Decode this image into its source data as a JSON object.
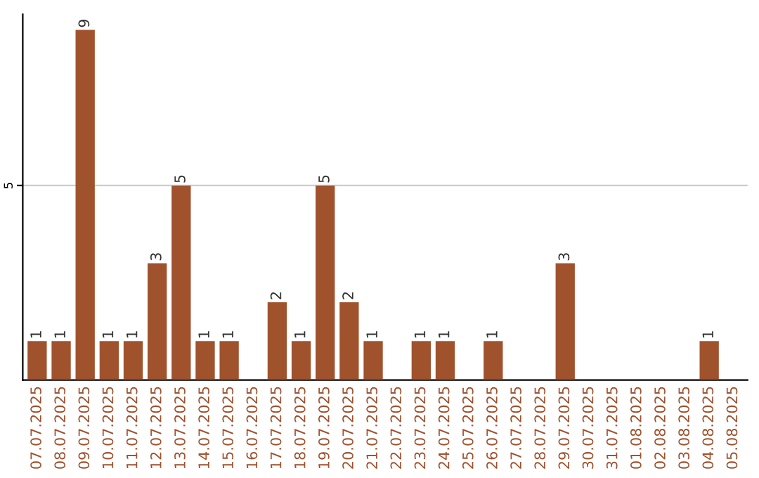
{
  "chart_data": {
    "type": "bar",
    "categories": [
      "07.07.2025",
      "08.07.2025",
      "09.07.2025",
      "10.07.2025",
      "11.07.2025",
      "12.07.2025",
      "13.07.2025",
      "14.07.2025",
      "15.07.2025",
      "16.07.2025",
      "17.07.2025",
      "18.07.2025",
      "19.07.2025",
      "20.07.2025",
      "21.07.2025",
      "22.07.2025",
      "23.07.2025",
      "24.07.2025",
      "25.07.2025",
      "26.07.2025",
      "27.07.2025",
      "28.07.2025",
      "29.07.2025",
      "30.07.2025",
      "31.07.2025",
      "01.08.2025",
      "02.08.2025",
      "03.08.2025",
      "04.08.2025",
      "05.08.2025"
    ],
    "values": [
      1,
      1,
      9,
      1,
      1,
      3,
      5,
      1,
      1,
      0,
      2,
      1,
      5,
      2,
      1,
      0,
      1,
      1,
      0,
      1,
      0,
      0,
      3,
      0,
      0,
      0,
      0,
      0,
      1,
      0
    ],
    "value_labels": [
      "1",
      "1",
      "9",
      "1",
      "1",
      "3",
      "5",
      "1",
      "1",
      null,
      "2",
      "1",
      "5",
      "2",
      "1",
      null,
      "1",
      "1",
      null,
      "1",
      null,
      null,
      "3",
      null,
      null,
      null,
      null,
      null,
      "1",
      null
    ],
    "color": "#a0522d",
    "ylim": [
      0,
      9.4
    ],
    "yticks": [
      5
    ],
    "grid": "y"
  }
}
